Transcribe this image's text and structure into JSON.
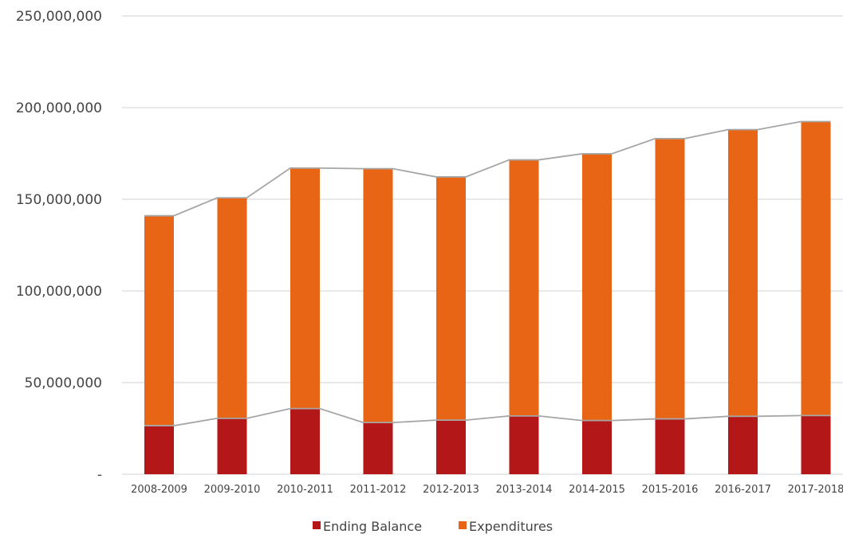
{
  "chart_data": {
    "type": "bar",
    "stacked": true,
    "categories": [
      "2008-2009",
      "2009-2010",
      "2010-2011",
      "2011-2012",
      "2012-2013",
      "2013-2014",
      "2014-2015",
      "2015-2016",
      "2016-2017",
      "2017-2018"
    ],
    "series": [
      {
        "name": "Ending Balance",
        "color": "#B31717",
        "values": [
          26500000,
          30500000,
          35800000,
          28200000,
          29500000,
          31800000,
          29300000,
          30200000,
          31600000,
          32000000
        ]
      },
      {
        "name": "Expenditures",
        "color": "#E86515",
        "values": [
          114500000,
          120300000,
          131200000,
          138500000,
          132700000,
          139700000,
          145500000,
          152900000,
          156400000,
          160400000
        ]
      }
    ],
    "connector_lines": true,
    "connector_color": "#A6A6A6",
    "ylim": [
      0,
      250000000
    ],
    "yticks": [
      0,
      50000000,
      100000000,
      150000000,
      200000000,
      250000000
    ],
    "ytick_labels": [
      "-",
      "50,000,000",
      "100,000,000",
      "150,000,000",
      "200,000,000",
      "250,000,000"
    ],
    "grid": true,
    "grid_color": "#D9D9D9",
    "legend_position": "bottom",
    "title": "",
    "xlabel": "",
    "ylabel": ""
  }
}
